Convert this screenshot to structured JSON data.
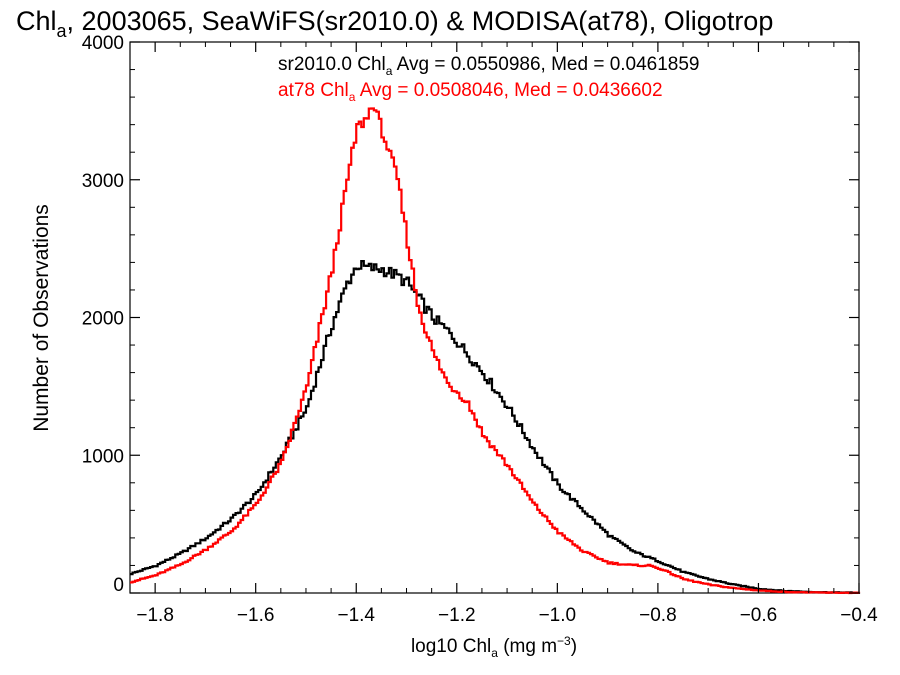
{
  "chart_data": {
    "type": "line",
    "title": {
      "pre": "Chl",
      "sub": "a",
      "post": ", 2003065, SeaWiFS(sr2010.0) & MODISA(at78), Oligotrop"
    },
    "xlabel": {
      "pre": "log10 Chl",
      "sub": "a",
      "mid": " (mg m",
      "sup": "−3",
      "post": ")"
    },
    "ylabel": "Number of Observations",
    "xlim": [
      -1.85,
      -0.4
    ],
    "ylim": [
      0,
      4000
    ],
    "x_ticks": [
      -1.8,
      -1.6,
      -1.4,
      -1.2,
      -1.0,
      -0.8,
      -0.6,
      -0.4
    ],
    "x_tick_labels": [
      "−1.8",
      "−1.6",
      "−1.4",
      "−1.2",
      "−1.0",
      "−0.8",
      "−0.6",
      "−0.4"
    ],
    "y_ticks": [
      0,
      1000,
      2000,
      3000,
      4000
    ],
    "y_tick_labels": [
      "0",
      "1000",
      "2000",
      "3000",
      "4000"
    ],
    "grid": false,
    "series": [
      {
        "name": "sr2010.0",
        "color": "#000000",
        "legend": {
          "pre": "sr2010.0 Chl",
          "sub": "a",
          "post": " Avg = 0.0550986, Med = 0.0461859"
        },
        "points": [
          [
            -1.85,
            140
          ],
          [
            -1.8,
            200
          ],
          [
            -1.75,
            290
          ],
          [
            -1.7,
            400
          ],
          [
            -1.65,
            540
          ],
          [
            -1.6,
            720
          ],
          [
            -1.55,
            1000
          ],
          [
            -1.5,
            1350
          ],
          [
            -1.45,
            1950
          ],
          [
            -1.42,
            2250
          ],
          [
            -1.4,
            2380
          ],
          [
            -1.38,
            2360
          ],
          [
            -1.35,
            2350
          ],
          [
            -1.32,
            2300
          ],
          [
            -1.3,
            2250
          ],
          [
            -1.28,
            2150
          ],
          [
            -1.25,
            2000
          ],
          [
            -1.22,
            1900
          ],
          [
            -1.2,
            1820
          ],
          [
            -1.15,
            1600
          ],
          [
            -1.1,
            1350
          ],
          [
            -1.05,
            1050
          ],
          [
            -1.0,
            780
          ],
          [
            -0.95,
            600
          ],
          [
            -0.9,
            420
          ],
          [
            -0.85,
            300
          ],
          [
            -0.8,
            230
          ],
          [
            -0.75,
            150
          ],
          [
            -0.7,
            100
          ],
          [
            -0.65,
            60
          ],
          [
            -0.6,
            30
          ],
          [
            -0.55,
            15
          ],
          [
            -0.5,
            8
          ],
          [
            -0.45,
            4
          ],
          [
            -0.4,
            2
          ]
        ]
      },
      {
        "name": "at78",
        "color": "#ff0000",
        "legend": {
          "pre": "at78 Chl",
          "sub": "a",
          "post": " Avg = 0.0508046, Med = 0.0436602"
        },
        "points": [
          [
            -1.85,
            80
          ],
          [
            -1.8,
            130
          ],
          [
            -1.75,
            210
          ],
          [
            -1.7,
            320
          ],
          [
            -1.65,
            450
          ],
          [
            -1.6,
            650
          ],
          [
            -1.55,
            950
          ],
          [
            -1.5,
            1500
          ],
          [
            -1.45,
            2350
          ],
          [
            -1.42,
            3000
          ],
          [
            -1.4,
            3380
          ],
          [
            -1.38,
            3450
          ],
          [
            -1.37,
            3560
          ],
          [
            -1.35,
            3350
          ],
          [
            -1.32,
            3000
          ],
          [
            -1.3,
            2550
          ],
          [
            -1.28,
            2100
          ],
          [
            -1.25,
            1750
          ],
          [
            -1.22,
            1520
          ],
          [
            -1.2,
            1460
          ],
          [
            -1.18,
            1380
          ],
          [
            -1.15,
            1150
          ],
          [
            -1.1,
            920
          ],
          [
            -1.05,
            650
          ],
          [
            -1.0,
            440
          ],
          [
            -0.95,
            300
          ],
          [
            -0.9,
            220
          ],
          [
            -0.85,
            200
          ],
          [
            -0.82,
            200
          ],
          [
            -0.8,
            180
          ],
          [
            -0.75,
            100
          ],
          [
            -0.7,
            60
          ],
          [
            -0.65,
            35
          ],
          [
            -0.6,
            18
          ],
          [
            -0.55,
            8
          ],
          [
            -0.5,
            4
          ],
          [
            -0.45,
            2
          ],
          [
            -0.4,
            1
          ]
        ]
      }
    ]
  }
}
